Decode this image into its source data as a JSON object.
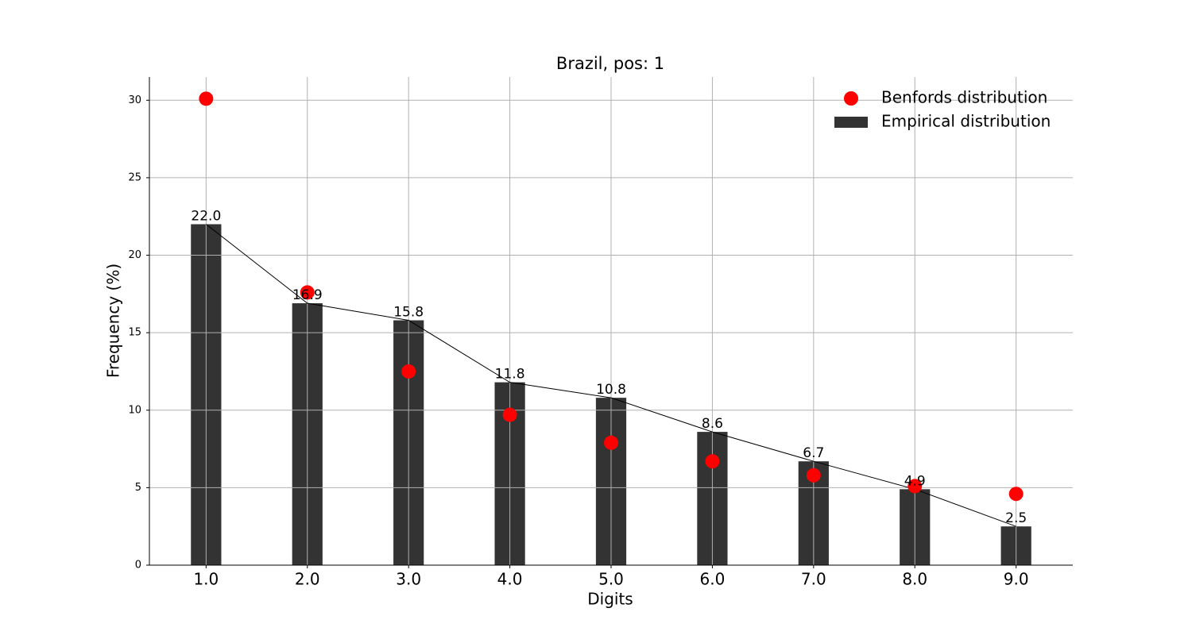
{
  "chart_data": {
    "type": "bar",
    "title": "Brazil, pos: 1",
    "x_label": "Digits",
    "y_label": "Frequency (%)",
    "x": [
      1,
      2,
      3,
      4,
      5,
      6,
      7,
      8,
      9
    ],
    "series": [
      {
        "name": "Benfords distribution",
        "type": "scatter",
        "color": "#ff0000",
        "values": [
          30.1,
          17.6,
          12.5,
          9.7,
          7.9,
          6.7,
          5.8,
          5.1,
          4.6
        ]
      },
      {
        "name": "Empirical distribution",
        "type": "bar",
        "color": "#333333",
        "line_color": "#000000",
        "values": [
          22.0,
          16.9,
          15.8,
          11.8,
          10.8,
          8.6,
          6.7,
          4.9,
          2.5
        ],
        "value_labels": [
          "22.0",
          "16.9",
          "15.8",
          "11.8",
          "10.8",
          "8.6",
          "6.7",
          "4.9",
          "2.5"
        ]
      }
    ],
    "xlim": [
      0.44,
      9.56
    ],
    "ylim": [
      0,
      31.5
    ],
    "xticks": [
      {
        "value": 1,
        "label": "1.0"
      },
      {
        "value": 2,
        "label": "2.0"
      },
      {
        "value": 3,
        "label": "3.0"
      },
      {
        "value": 4,
        "label": "4.0"
      },
      {
        "value": 5,
        "label": "5.0"
      },
      {
        "value": 6,
        "label": "6.0"
      },
      {
        "value": 7,
        "label": "7.0"
      },
      {
        "value": 8,
        "label": "8.0"
      },
      {
        "value": 9,
        "label": "9.0"
      }
    ],
    "yticks": [
      0,
      5,
      10,
      15,
      20,
      25,
      30
    ],
    "grid": true,
    "legend": "upper right"
  }
}
